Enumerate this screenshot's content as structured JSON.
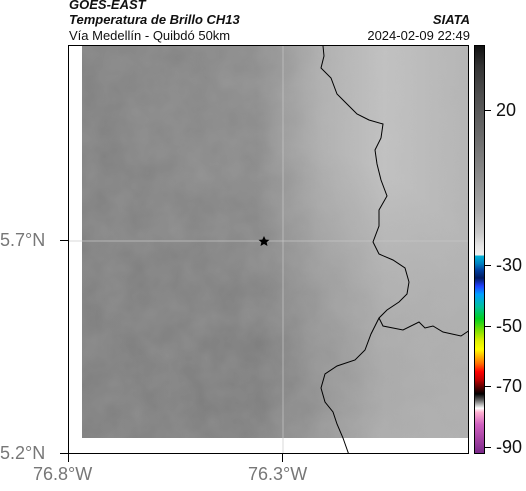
{
  "header": {
    "title": "GOES-EAST",
    "subtitle": "Temperatura de Brillo CH13",
    "location": "Vía Medellín - Quibdó 50km",
    "org": "SIATA",
    "timestamp": "2024-02-09 22:49"
  },
  "axes": {
    "lat_labels": [
      "5.7°N",
      "5.2°N"
    ],
    "lon_labels": [
      "76.8°W",
      "76.3°W"
    ]
  },
  "colorbar": {
    "ticks": [
      "20",
      "-30",
      "-50",
      "-70",
      "-90"
    ]
  },
  "colors": {
    "map_base": "#7e7e7e",
    "map_east": "#bdbdbd",
    "border": "#000000",
    "gridline": "#c8c8c8"
  },
  "icons": {
    "marker": "star-icon"
  }
}
